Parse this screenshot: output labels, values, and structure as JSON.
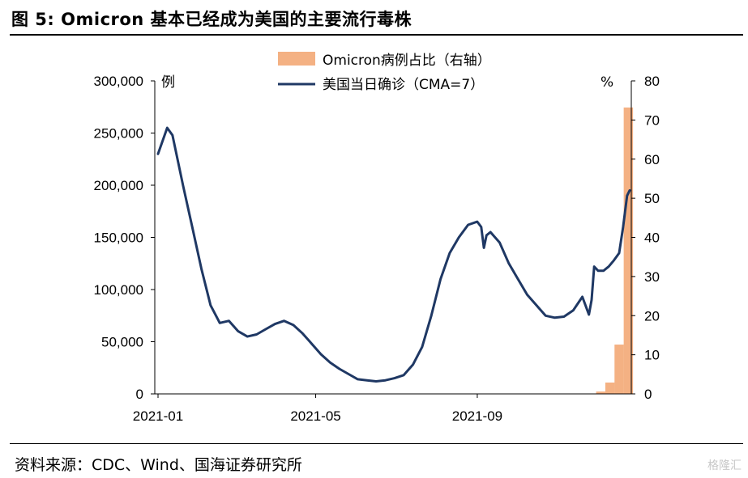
{
  "title": "图 5: Omicron 基本已经成为美国的主要流行毒株",
  "source": "资料来源：CDC、Wind、国海证券研究所",
  "watermark": "格隆汇",
  "colors": {
    "line": "#1f3864",
    "bar": "#f4b183",
    "axis": "#000000"
  },
  "chart_data": {
    "type": "line+bar",
    "x_ticks": [
      "2021-01",
      "2021-05",
      "2021-09"
    ],
    "left_axis": {
      "unit": "例",
      "ylim": [
        0,
        300000
      ],
      "ticks": [
        "0",
        "50,000",
        "100,000",
        "150,000",
        "200,000",
        "250,000",
        "300,000"
      ]
    },
    "right_axis": {
      "unit": "%",
      "ylim": [
        0,
        80
      ],
      "ticks": [
        "0",
        "10",
        "20",
        "30",
        "40",
        "50",
        "60",
        "70",
        "80"
      ]
    },
    "legend": {
      "bar_label": "Omicron病例占比（右轴）",
      "line_label": "美国当日确诊（CMA=7）"
    },
    "bar_series": {
      "name": "Omicron病例占比（右轴）",
      "x": [
        "2021-12-04",
        "2021-12-11",
        "2021-12-18",
        "2021-12-25"
      ],
      "values": [
        0.6,
        2.9,
        12.6,
        73.2
      ]
    },
    "line_series": {
      "name": "美国当日确诊（CMA=7）",
      "x": [
        "2021-01-01",
        "2021-01-08",
        "2021-01-12",
        "2021-01-20",
        "2021-01-27",
        "2021-02-03",
        "2021-02-10",
        "2021-02-17",
        "2021-02-24",
        "2021-03-03",
        "2021-03-10",
        "2021-03-17",
        "2021-03-24",
        "2021-03-31",
        "2021-04-07",
        "2021-04-14",
        "2021-04-21",
        "2021-04-28",
        "2021-05-05",
        "2021-05-12",
        "2021-05-19",
        "2021-05-26",
        "2021-06-02",
        "2021-06-09",
        "2021-06-16",
        "2021-06-23",
        "2021-06-30",
        "2021-07-07",
        "2021-07-14",
        "2021-07-21",
        "2021-07-28",
        "2021-08-04",
        "2021-08-11",
        "2021-08-18",
        "2021-08-25",
        "2021-09-01",
        "2021-09-04",
        "2021-09-06",
        "2021-09-08",
        "2021-09-11",
        "2021-09-18",
        "2021-09-25",
        "2021-10-02",
        "2021-10-09",
        "2021-10-16",
        "2021-10-23",
        "2021-10-30",
        "2021-11-06",
        "2021-11-13",
        "2021-11-20",
        "2021-11-25",
        "2021-11-27",
        "2021-11-29",
        "2021-12-02",
        "2021-12-06",
        "2021-12-10",
        "2021-12-14",
        "2021-12-18",
        "2021-12-21",
        "2021-12-24",
        "2021-12-26"
      ],
      "values": [
        230000,
        255000,
        248000,
        200000,
        160000,
        120000,
        85000,
        68000,
        70000,
        60000,
        55000,
        57000,
        62000,
        67000,
        70000,
        66000,
        58000,
        48000,
        38000,
        30000,
        24000,
        19000,
        14000,
        13000,
        12000,
        13000,
        15000,
        18000,
        28000,
        45000,
        75000,
        110000,
        135000,
        150000,
        162000,
        165000,
        160000,
        140000,
        152000,
        155000,
        145000,
        125000,
        110000,
        95000,
        85000,
        75000,
        73000,
        74000,
        80000,
        93000,
        76000,
        90000,
        122000,
        118000,
        118000,
        122000,
        128000,
        135000,
        160000,
        190000,
        195000
      ]
    }
  }
}
